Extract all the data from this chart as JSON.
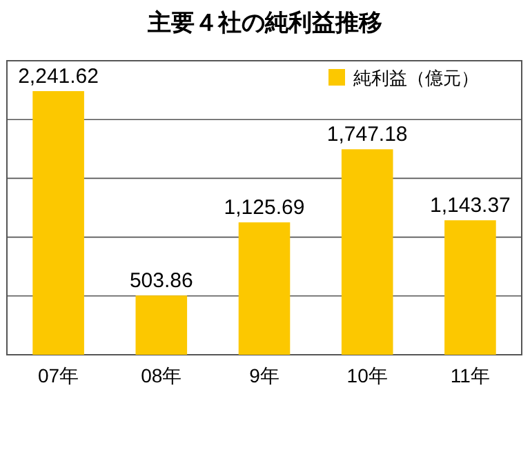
{
  "chart_data": {
    "type": "bar",
    "title": "主要４社の純利益推移",
    "categories": [
      "07年",
      "08年",
      "9年",
      "10年",
      "11年"
    ],
    "series": [
      {
        "name": "純利益（億元）",
        "color": "#fcc800",
        "values": [
          2241.62,
          503.86,
          1125.69,
          1747.18,
          1143.37
        ],
        "value_labels": [
          "2,241.62",
          "503.86",
          "1,125.69",
          "1,747.18",
          "1,143.37"
        ]
      }
    ],
    "ylim": [
      0,
      2500
    ],
    "yticks": [
      {
        "value": 0,
        "label": null
      },
      {
        "value": 500,
        "label": null
      },
      {
        "value": 1000,
        "label": null
      },
      {
        "value": 1500,
        "label": null
      },
      {
        "value": 2000,
        "label": null
      },
      {
        "value": 2500,
        "label": null
      }
    ],
    "grid": "y",
    "legend": "top right"
  }
}
